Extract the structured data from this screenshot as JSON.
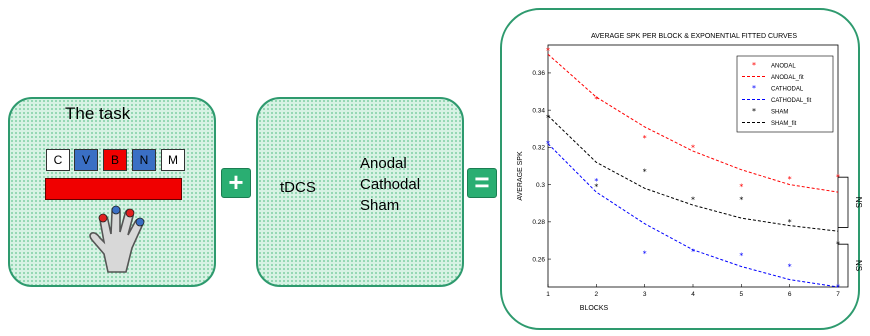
{
  "task": {
    "title": "The task",
    "keys": [
      {
        "label": "C",
        "color": "#ffffff"
      },
      {
        "label": "V",
        "color": "#3a6fc4"
      },
      {
        "label": "B",
        "color": "#f00000"
      },
      {
        "label": "N",
        "color": "#3a6fc4"
      },
      {
        "label": "M",
        "color": "#ffffff"
      }
    ]
  },
  "tdcs": {
    "label": "tDCS",
    "conditions": [
      "Anodal",
      "Cathodal",
      "Sham"
    ]
  },
  "operators": {
    "plus": "+",
    "equals": "="
  },
  "chart_data": {
    "type": "scatter",
    "title": "AVERAGE SPK PER BLOCK & EXPONENTIAL FITTED CURVES",
    "xlabel": "BLOCKS",
    "ylabel": "AVERAGE SPK",
    "xlim": [
      1,
      7
    ],
    "ylim": [
      0.245,
      0.375
    ],
    "xticks": [
      1,
      2,
      3,
      4,
      5,
      6,
      7
    ],
    "yticks": [
      0.26,
      0.28,
      0.3,
      0.32,
      0.34,
      0.36
    ],
    "ytick_labels": [
      "0.26",
      "0.28",
      "0.3",
      "0.32",
      "0.34",
      "0.36"
    ],
    "legend_placement": "top-right",
    "series": [
      {
        "name": "ANODAL",
        "fit_name": "ANODAL_fit",
        "color": "#ff0000",
        "marker": "*",
        "x": [
          1,
          2,
          3,
          4,
          5,
          6,
          7
        ],
        "y": [
          0.372,
          0.346,
          0.325,
          0.32,
          0.299,
          0.303,
          0.304
        ],
        "fit_y": [
          0.37,
          0.347,
          0.331,
          0.318,
          0.308,
          0.3,
          0.296
        ]
      },
      {
        "name": "CATHODAL",
        "fit_name": "CATHODAL_fit",
        "color": "#0000ff",
        "marker": "*",
        "x": [
          1,
          2,
          3,
          4,
          5,
          6,
          7
        ],
        "y": [
          0.322,
          0.302,
          0.263,
          0.264,
          0.262,
          0.256,
          0.245
        ],
        "fit_y": [
          0.322,
          0.296,
          0.279,
          0.265,
          0.256,
          0.249,
          0.245
        ]
      },
      {
        "name": "SHAM",
        "fit_name": "SHAM_fit",
        "color": "#000000",
        "marker": "*",
        "x": [
          1,
          2,
          3,
          4,
          5,
          6,
          7
        ],
        "y": [
          0.336,
          0.299,
          0.307,
          0.292,
          0.292,
          0.28,
          0.268
        ],
        "fit_y": [
          0.337,
          0.312,
          0.298,
          0.289,
          0.282,
          0.278,
          0.275
        ]
      }
    ],
    "annotations": [
      "NS",
      "NS"
    ]
  }
}
